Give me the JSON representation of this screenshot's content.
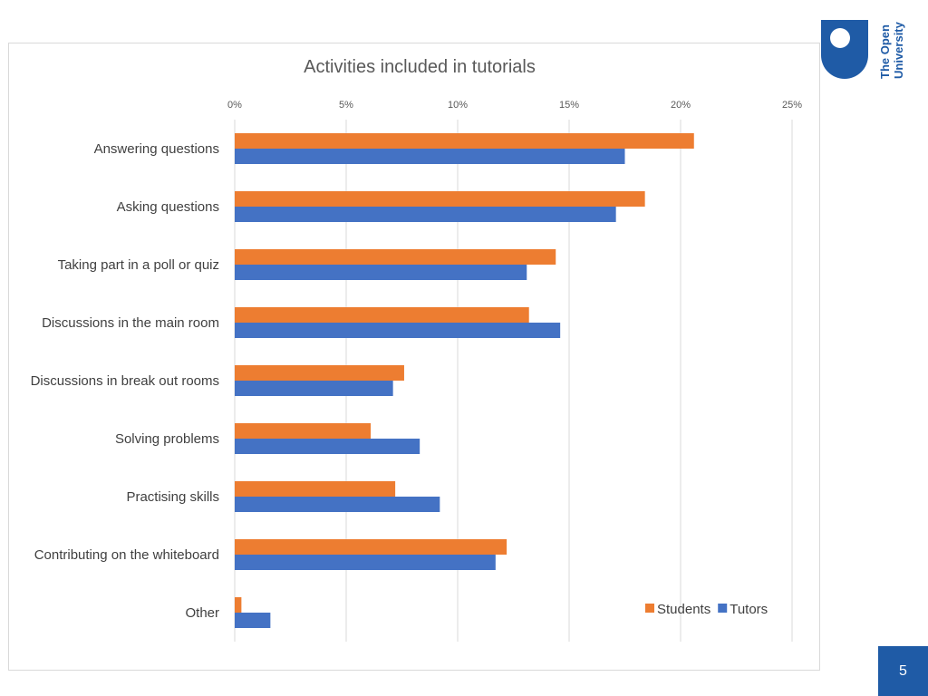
{
  "slide": {
    "number": "5"
  },
  "logo": {
    "line1": "The Open",
    "line2": "University",
    "color": "#1f5ba6"
  },
  "chart_data": {
    "type": "bar",
    "orientation": "horizontal",
    "title": "Activities included in tutorials",
    "xlabel": "",
    "ylabel": "",
    "xlim": [
      0,
      25
    ],
    "x_ticks": [
      "0%",
      "5%",
      "10%",
      "15%",
      "20%",
      "25%"
    ],
    "x_tick_values": [
      0,
      5,
      10,
      15,
      20,
      25
    ],
    "x_axis_position": "top",
    "grid": true,
    "legend_position": "bottom-right",
    "categories": [
      "Answering questions",
      "Asking questions",
      "Taking part in a poll or quiz",
      "Discussions in the main room",
      "Discussions in break out rooms",
      "Solving problems",
      "Practising skills",
      "Contributing on the whiteboard",
      "Other"
    ],
    "series": [
      {
        "name": "Students",
        "color": "#ed7d31",
        "values": [
          20.6,
          18.4,
          14.4,
          13.2,
          7.6,
          6.1,
          7.2,
          12.2,
          0.3
        ]
      },
      {
        "name": "Tutors",
        "color": "#4472c4",
        "values": [
          17.5,
          17.1,
          13.1,
          14.6,
          7.1,
          8.3,
          9.2,
          11.7,
          1.6
        ]
      }
    ]
  }
}
